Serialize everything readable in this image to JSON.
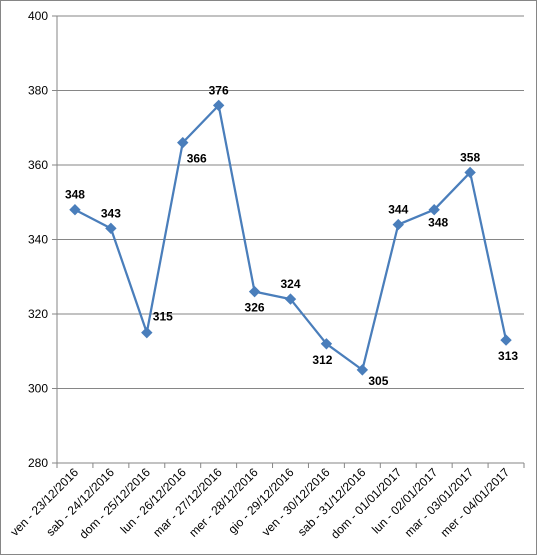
{
  "chart_data": {
    "type": "line",
    "title": "",
    "xlabel": "",
    "ylabel": "",
    "ylim": [
      280,
      400
    ],
    "ytick_step": 20,
    "grid": true,
    "legend": "none",
    "categories": [
      "ven - 23/12/2016",
      "sab - 24/12/2016",
      "dom - 25/12/2016",
      "lun - 26/12/2016",
      "mar - 27/12/2016",
      "mer - 28/12/2016",
      "gio - 29/12/2016",
      "ven - 30/12/2016",
      "sab - 31/12/2016",
      "dom - 01/01/2017",
      "lun - 02/01/2017",
      "mar - 03/01/2017",
      "mer - 04/01/2017"
    ],
    "series": [
      {
        "values": [
          348,
          343,
          315,
          366,
          376,
          326,
          324,
          312,
          305,
          344,
          348,
          358,
          313
        ],
        "color": "#4a7ebb"
      }
    ],
    "label_placement": [
      "above",
      "above",
      "right",
      "below",
      "above",
      "below",
      "above",
      "below",
      "right",
      "above",
      "below",
      "above",
      "below"
    ]
  }
}
